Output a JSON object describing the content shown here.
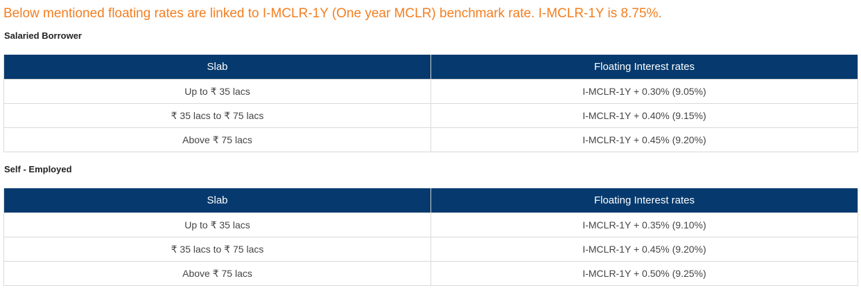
{
  "intro_text": "Below mentioned floating rates are linked to I-MCLR-1Y (One year MCLR) benchmark rate. I-MCLR-1Y is 8.75%.",
  "accent_color": "#f37e20",
  "header_color": "#063a6e",
  "tables": [
    {
      "title": "Salaried Borrower",
      "headers": [
        "Slab",
        "Floating Interest rates"
      ],
      "rows": [
        [
          "Up to ₹ 35 lacs",
          "I-MCLR-1Y + 0.30% (9.05%)"
        ],
        [
          "₹ 35 lacs to ₹ 75 lacs",
          "I-MCLR-1Y + 0.40% (9.15%)"
        ],
        [
          "Above ₹ 75 lacs",
          "I-MCLR-1Y + 0.45% (9.20%)"
        ]
      ]
    },
    {
      "title": "Self - Employed",
      "headers": [
        "Slab",
        "Floating Interest rates"
      ],
      "rows": [
        [
          "Up to ₹ 35 lacs",
          "I-MCLR-1Y + 0.35% (9.10%)"
        ],
        [
          "₹ 35 lacs to ₹ 75 lacs",
          "I-MCLR-1Y + 0.45% (9.20%)"
        ],
        [
          "Above ₹ 75 lacs",
          "I-MCLR-1Y + 0.50% (9.25%)"
        ]
      ]
    }
  ]
}
